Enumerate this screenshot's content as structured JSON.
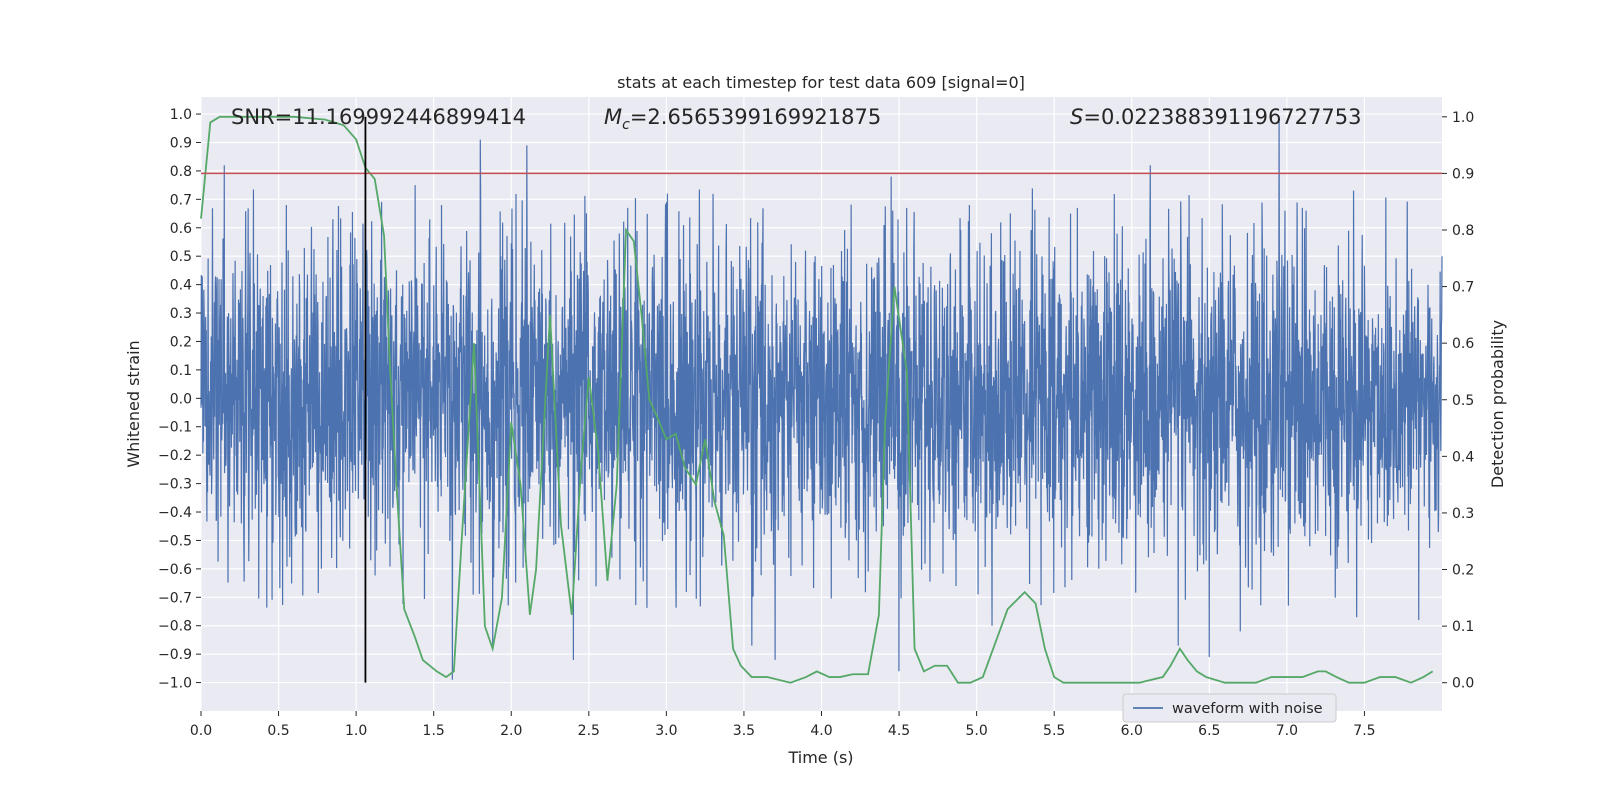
{
  "chart_data": {
    "type": "line",
    "title": "stats at each timestep for test data 609 [signal=0]",
    "xlabel": "Time (s)",
    "ylabel_left": "Whitened strain",
    "ylabel_right": "Detection probability",
    "xlim": [
      0,
      8.0
    ],
    "ylim_left": [
      -1.1,
      1.06
    ],
    "ylim_right": [
      -0.05,
      1.035
    ],
    "x_ticks": [
      0.0,
      0.5,
      1.0,
      1.5,
      2.0,
      2.5,
      3.0,
      3.5,
      4.0,
      4.5,
      5.0,
      5.5,
      6.0,
      6.5,
      7.0,
      7.5
    ],
    "x_tick_labels": [
      "0.0",
      "0.5",
      "1.0",
      "1.5",
      "2.0",
      "2.5",
      "3.0",
      "3.5",
      "4.0",
      "4.5",
      "5.0",
      "5.5",
      "6.0",
      "6.5",
      "7.0",
      "7.5"
    ],
    "y_left_ticks": [
      -1.0,
      -0.9,
      -0.8,
      -0.7,
      -0.6,
      -0.5,
      -0.4,
      -0.3,
      -0.2,
      -0.1,
      0.0,
      0.1,
      0.2,
      0.3,
      0.4,
      0.5,
      0.6,
      0.7,
      0.8,
      0.9,
      1.0
    ],
    "y_left_tick_labels": [
      "−1.0",
      "−0.9",
      "−0.8",
      "−0.7",
      "−0.6",
      "−0.5",
      "−0.4",
      "−0.3",
      "−0.2",
      "−0.1",
      "0.0",
      "0.1",
      "0.2",
      "0.3",
      "0.4",
      "0.5",
      "0.6",
      "0.7",
      "0.8",
      "0.9",
      "1.0"
    ],
    "y_right_ticks": [
      0.0,
      0.1,
      0.2,
      0.3,
      0.4,
      0.5,
      0.6,
      0.7,
      0.8,
      0.9,
      1.0
    ],
    "y_right_tick_labels": [
      "0.0",
      "0.1",
      "0.2",
      "0.3",
      "0.4",
      "0.5",
      "0.6",
      "0.7",
      "0.8",
      "0.9",
      "1.0"
    ],
    "grid": true,
    "legend": {
      "position": "bottom-right",
      "entries": [
        "waveform with noise"
      ]
    },
    "annotations": {
      "snr": "SNR=11.169992446899414",
      "mc_symbol": "M",
      "mc_sub": "c",
      "mc_value": "=2.6565399169921875",
      "s_symbol": "S",
      "s_value": "=0.022388391196727753"
    },
    "threshold_right": 0.9,
    "vline_x": 1.06,
    "series": [
      {
        "name": "waveform with noise",
        "axis": "left",
        "color": "#4c72b0",
        "style": "noise",
        "duration": 8.0,
        "typical_amplitude": 0.5,
        "peaks": [
          [
            0.15,
            0.82
          ],
          [
            0.55,
            0.68
          ],
          [
            0.85,
            0.63
          ],
          [
            1.38,
            0.75
          ],
          [
            1.55,
            0.68
          ],
          [
            1.62,
            -0.99
          ],
          [
            1.8,
            0.91
          ],
          [
            1.88,
            -0.87
          ],
          [
            2.1,
            0.89
          ],
          [
            2.4,
            -0.92
          ],
          [
            2.75,
            0.67
          ],
          [
            3.0,
            0.69
          ],
          [
            3.55,
            -0.87
          ],
          [
            3.7,
            -0.92
          ],
          [
            4.45,
            0.78
          ],
          [
            4.5,
            -0.96
          ],
          [
            4.55,
            0.67
          ],
          [
            5.1,
            -0.8
          ],
          [
            5.65,
            0.67
          ],
          [
            6.12,
            0.82
          ],
          [
            6.3,
            -0.87
          ],
          [
            6.5,
            -0.91
          ],
          [
            6.7,
            -0.82
          ],
          [
            6.95,
            0.98
          ],
          [
            7.1,
            0.67
          ],
          [
            7.45,
            -0.77
          ],
          [
            7.85,
            -0.78
          ]
        ]
      },
      {
        "name": "",
        "axis": "right",
        "color": "#55a868",
        "style": "line",
        "x": [
          0.0,
          0.06,
          0.12,
          0.3,
          0.6,
          0.8,
          0.92,
          1.0,
          1.06,
          1.12,
          1.18,
          1.22,
          1.26,
          1.31,
          1.38,
          1.43,
          1.52,
          1.58,
          1.63,
          1.68,
          1.76,
          1.83,
          1.88,
          1.94,
          2.0,
          2.06,
          2.12,
          2.16,
          2.25,
          2.32,
          2.39,
          2.45,
          2.5,
          2.56,
          2.62,
          2.68,
          2.74,
          2.79,
          2.84,
          2.89,
          2.94,
          3.0,
          3.06,
          3.12,
          3.19,
          3.25,
          3.31,
          3.37,
          3.43,
          3.48,
          3.55,
          3.65,
          3.8,
          3.9,
          3.97,
          4.05,
          4.12,
          4.2,
          4.3,
          4.37,
          4.41,
          4.47,
          4.55,
          4.6,
          4.66,
          4.73,
          4.81,
          4.88,
          4.96,
          5.04,
          5.12,
          5.2,
          5.31,
          5.38,
          5.44,
          5.5,
          5.56,
          5.63,
          5.75,
          5.9,
          6.05,
          6.2,
          6.25,
          6.31,
          6.36,
          6.42,
          6.48,
          6.6,
          6.8,
          6.9,
          7.0,
          7.1,
          7.2,
          7.25,
          7.32,
          7.4,
          7.5,
          7.6,
          7.7,
          7.8,
          7.88,
          7.94
        ],
        "y": [
          0.82,
          0.99,
          1.0,
          1.0,
          1.0,
          0.995,
          0.985,
          0.96,
          0.91,
          0.89,
          0.79,
          0.55,
          0.35,
          0.13,
          0.08,
          0.04,
          0.02,
          0.01,
          0.02,
          0.25,
          0.6,
          0.1,
          0.06,
          0.15,
          0.46,
          0.35,
          0.12,
          0.2,
          0.65,
          0.28,
          0.12,
          0.38,
          0.54,
          0.41,
          0.18,
          0.35,
          0.8,
          0.78,
          0.65,
          0.5,
          0.47,
          0.43,
          0.44,
          0.38,
          0.35,
          0.43,
          0.32,
          0.26,
          0.06,
          0.03,
          0.01,
          0.01,
          0.0,
          0.01,
          0.02,
          0.01,
          0.01,
          0.015,
          0.015,
          0.12,
          0.46,
          0.7,
          0.55,
          0.06,
          0.02,
          0.03,
          0.03,
          0.0,
          0.0,
          0.01,
          0.07,
          0.13,
          0.16,
          0.14,
          0.06,
          0.01,
          0.0,
          0.0,
          0.0,
          0.0,
          0.0,
          0.01,
          0.03,
          0.06,
          0.04,
          0.02,
          0.01,
          0.0,
          0.0,
          0.01,
          0.01,
          0.01,
          0.02,
          0.02,
          0.01,
          0.0,
          0.0,
          0.01,
          0.01,
          0.0,
          0.01,
          0.02
        ]
      }
    ]
  }
}
